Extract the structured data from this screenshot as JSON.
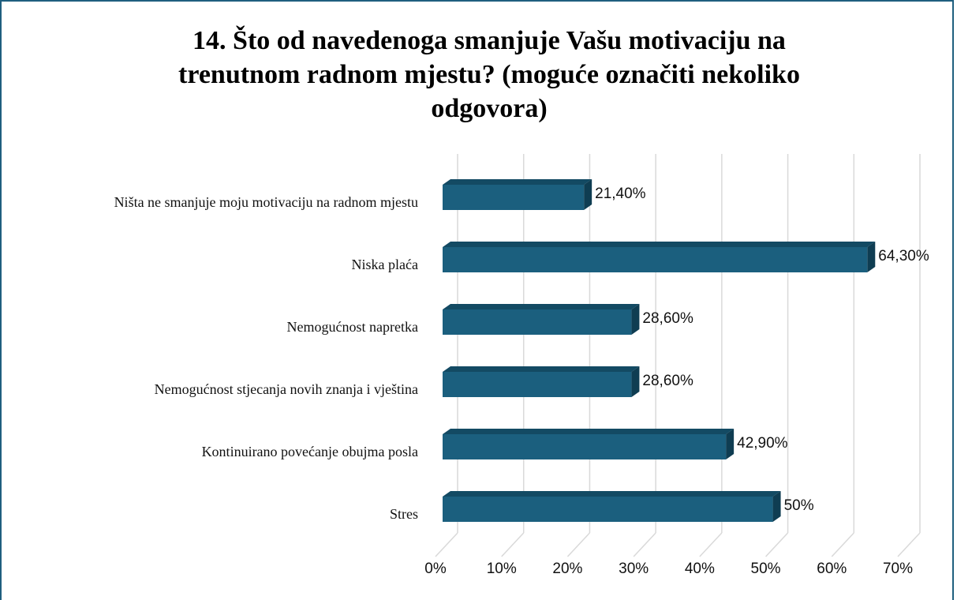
{
  "chart_data": {
    "type": "bar",
    "orientation": "horizontal",
    "title": "14. Što od navedenoga smanjuje Vašu motivaciju na trenutnom radnom mjestu? (moguće označiti nekoliko odgovora)",
    "categories": [
      "Ništa ne smanjuje moju motivaciju na radnom mjestu",
      "Niska plaća",
      "Nemogućnost napretka",
      "Nemogućnost stjecanja novih znanja i vještina",
      "Kontinuirano povećanje obujma posla",
      "Stres"
    ],
    "values": [
      21.4,
      64.3,
      28.6,
      28.6,
      42.9,
      50
    ],
    "value_labels": [
      "21,40%",
      "64,30%",
      "28,60%",
      "28,60%",
      "42,90%",
      "50%"
    ],
    "color": "#1b5f7e",
    "xlim": [
      0,
      70
    ],
    "xticks": [
      {
        "value": 0,
        "label": "0%"
      },
      {
        "value": 10,
        "label": "10%"
      },
      {
        "value": 20,
        "label": "20%"
      },
      {
        "value": 30,
        "label": "30%"
      },
      {
        "value": 40,
        "label": "40%"
      },
      {
        "value": 50,
        "label": "50%"
      },
      {
        "value": 60,
        "label": "60%"
      },
      {
        "value": 70,
        "label": "70%"
      }
    ],
    "grid": true
  }
}
